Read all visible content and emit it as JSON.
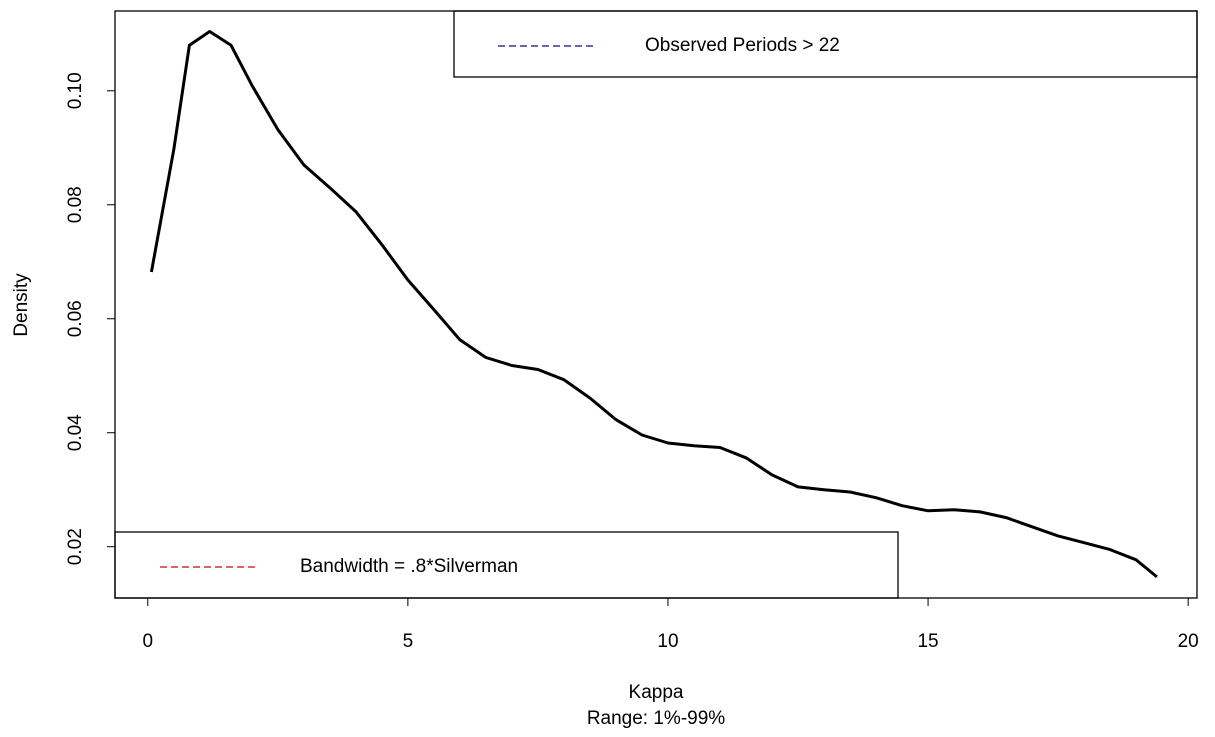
{
  "chart_data": {
    "type": "line",
    "xlabel": "Kappa",
    "subtitle": "Range: 1%-99%",
    "ylabel": "Density",
    "x": [
      0.07,
      0.5,
      0.8,
      1.19,
      1.6,
      2,
      2.5,
      3,
      3.5,
      4,
      4.5,
      5,
      5.5,
      6,
      6.5,
      7,
      7.5,
      8,
      8.5,
      9,
      9.5,
      10,
      10.5,
      11,
      11.5,
      12,
      12.5,
      13,
      13.5,
      14,
      14.5,
      15,
      15.5,
      16,
      16.5,
      17,
      17.5,
      18,
      18.5,
      19,
      19.4
    ],
    "values": [
      0.0682,
      0.0897,
      0.108,
      0.1104,
      0.108,
      0.101,
      0.0932,
      0.087,
      0.083,
      0.0788,
      0.073,
      0.0668,
      0.0616,
      0.0563,
      0.0532,
      0.0518,
      0.0511,
      0.0493,
      0.0461,
      0.0423,
      0.0396,
      0.0382,
      0.0377,
      0.0374,
      0.0356,
      0.0326,
      0.0305,
      0.03,
      0.0296,
      0.0286,
      0.0272,
      0.0263,
      0.0265,
      0.0261,
      0.0251,
      0.0235,
      0.0219,
      0.0207,
      0.0195,
      0.0177,
      0.0147
    ],
    "color": "#000000",
    "xlim": [
      -0.63,
      20.17
    ],
    "xticks": [
      0,
      5,
      10,
      15,
      20
    ],
    "ylim": [
      0.011,
      0.114
    ],
    "yticks": [
      0.02,
      0.04,
      0.06,
      0.08,
      {
        "value": 0.1,
        "label": "0.10"
      }
    ],
    "legends": [
      {
        "label": "Observed Periods > 22",
        "color": "#333399",
        "corner": "top-right"
      },
      {
        "label": "Bandwidth = .8*Silverman",
        "color": "#cc3333",
        "corner": "bottom-left"
      }
    ]
  }
}
